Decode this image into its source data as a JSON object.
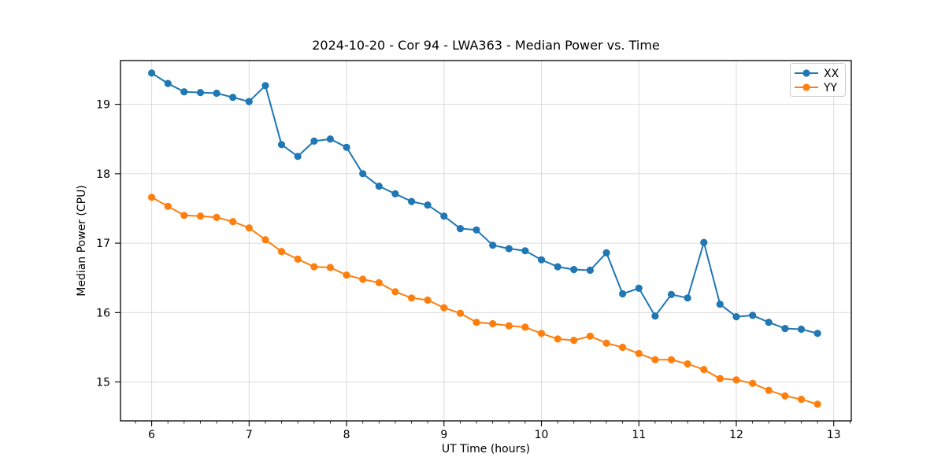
{
  "chart_data": {
    "type": "line",
    "title": "2024-10-20 - Cor 94 - LWA363 - Median Power vs. Time",
    "xlabel": "UT Time (hours)",
    "ylabel": "Median Power (CPU)",
    "xlim": [
      5.68,
      13.18
    ],
    "ylim": [
      14.44,
      19.63
    ],
    "x_major_ticks": [
      6,
      7,
      8,
      9,
      10,
      11,
      12,
      13
    ],
    "y_major_ticks": [
      15,
      16,
      17,
      18,
      19
    ],
    "x_minor_tick_step_hours": 0.1667,
    "grid": true,
    "legend_position": "upper right",
    "x": [
      6.0,
      6.167,
      6.333,
      6.5,
      6.667,
      6.833,
      7.0,
      7.167,
      7.333,
      7.5,
      7.667,
      7.833,
      8.0,
      8.167,
      8.333,
      8.5,
      8.667,
      8.833,
      9.0,
      9.167,
      9.333,
      9.5,
      9.667,
      9.833,
      10.0,
      10.167,
      10.333,
      10.5,
      10.667,
      10.833,
      11.0,
      11.167,
      11.333,
      11.5,
      11.667,
      11.833,
      12.0,
      12.167,
      12.333,
      12.5,
      12.667,
      12.833
    ],
    "series": [
      {
        "name": "XX",
        "color": "#1f77b4",
        "values": [
          19.45,
          19.3,
          19.18,
          19.17,
          19.16,
          19.1,
          19.04,
          19.27,
          18.42,
          18.25,
          18.47,
          18.5,
          18.38,
          18.0,
          17.82,
          17.71,
          17.6,
          17.55,
          17.39,
          17.21,
          17.19,
          16.97,
          16.92,
          16.89,
          16.76,
          16.66,
          16.62,
          16.61,
          16.86,
          16.27,
          16.35,
          15.95,
          16.26,
          16.21,
          17.01,
          16.12,
          15.94,
          15.96,
          15.86,
          15.77,
          15.76,
          15.7
        ]
      },
      {
        "name": "YY",
        "color": "#ff7f0e",
        "values": [
          17.66,
          17.53,
          17.4,
          17.39,
          17.37,
          17.31,
          17.22,
          17.05,
          16.88,
          16.77,
          16.66,
          16.65,
          16.54,
          16.48,
          16.43,
          16.3,
          16.21,
          16.18,
          16.07,
          15.99,
          15.86,
          15.84,
          15.81,
          15.79,
          15.7,
          15.62,
          15.6,
          15.66,
          15.56,
          15.5,
          15.41,
          15.32,
          15.32,
          15.26,
          15.18,
          15.05,
          15.03,
          14.98,
          14.88,
          14.8,
          14.75,
          14.68
        ]
      }
    ]
  },
  "styles": {
    "background": "#ffffff",
    "grid_color": "#dcdcdc",
    "spine_color": "#000000",
    "tick_color": "#000000",
    "legend_border_color": "#cccccc",
    "legend_background": "#ffffff"
  }
}
